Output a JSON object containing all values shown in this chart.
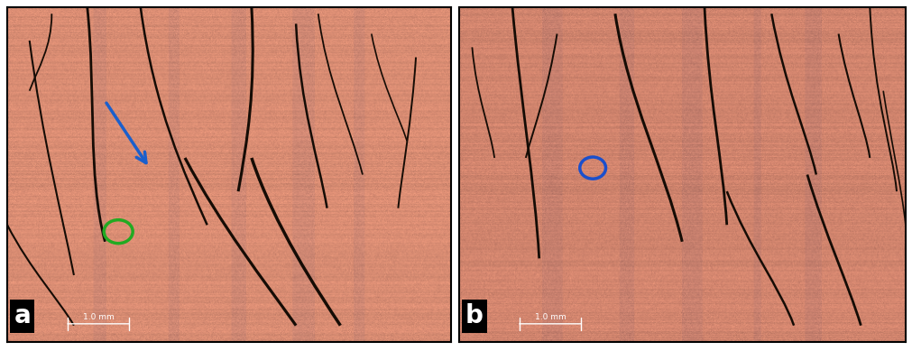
{
  "fig_width": 10.11,
  "fig_height": 3.89,
  "dpi": 100,
  "bg_color": "#ffffff",
  "border_color": "#000000",
  "panel_a_bg": "#d4826a",
  "panel_b_bg": "#cc7a65",
  "label_a": "a",
  "label_b": "b",
  "scale_text": "1.0 mm",
  "arrow_color": "#1a5fcc",
  "green_circle_color": "#22aa22",
  "blue_circle_color": "#1a4fcc",
  "label_fontsize": 20,
  "scale_fontsize": 6.5
}
